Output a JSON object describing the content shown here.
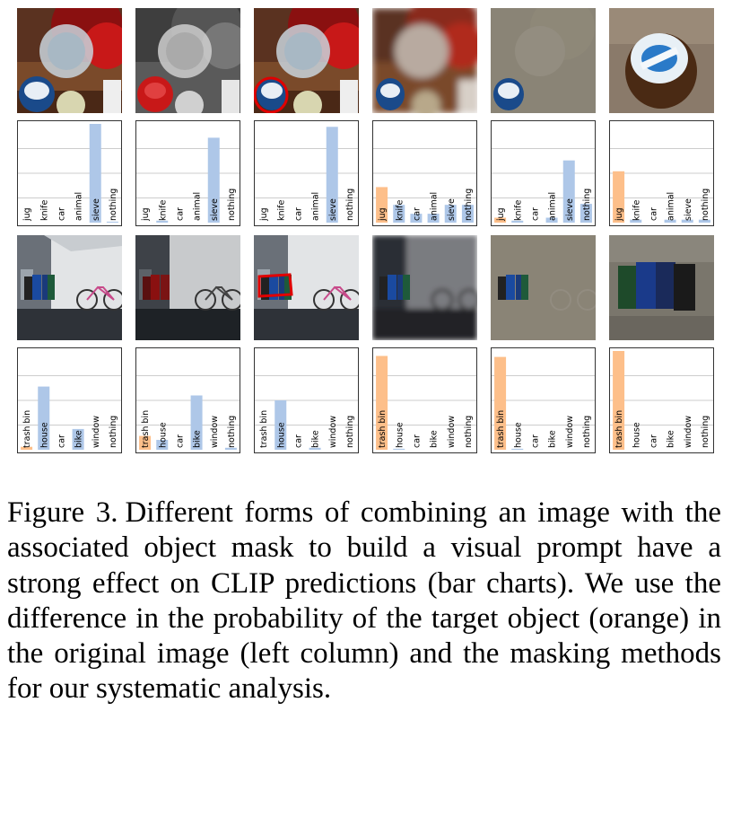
{
  "figure": {
    "label": "Figure 3.",
    "caption": "Different forms of combining an image with the associated object mask to build a visual prompt have a strong effect on CLIP predictions (bar charts). We use the difference in the probability of the target object (orange) in the original image (left column) and the masking methods for our systematic analysis."
  },
  "colors": {
    "target": "#fdbf8a",
    "other": "#aec7e8",
    "mask_outline": "#e00000"
  },
  "rows": [
    {
      "scene": "kitchen",
      "thumbs": [
        "original",
        "grayscale",
        "red-outline",
        "blur",
        "gray-background",
        "crop"
      ]
    },
    {
      "scene": "street",
      "thumbs": [
        "original",
        "darkened",
        "red-outline",
        "blur",
        "gray-background",
        "crop"
      ]
    }
  ],
  "chart_data": [
    {
      "type": "bar",
      "ylim": [
        0,
        1
      ],
      "categories": [
        "jug",
        "knife",
        "car",
        "animal",
        "sieve",
        "nothing"
      ],
      "values": [
        0.0,
        0.0,
        0.0,
        0.0,
        1.0,
        0.01
      ],
      "target_index": 0
    },
    {
      "type": "bar",
      "ylim": [
        0,
        1
      ],
      "categories": [
        "jug",
        "knife",
        "car",
        "animal",
        "sieve",
        "nothing"
      ],
      "values": [
        0.0,
        0.02,
        0.0,
        0.0,
        0.86,
        0.0
      ],
      "target_index": 0
    },
    {
      "type": "bar",
      "ylim": [
        0,
        1
      ],
      "categories": [
        "jug",
        "knife",
        "car",
        "animal",
        "sieve",
        "nothing"
      ],
      "values": [
        0.0,
        0.0,
        0.0,
        0.0,
        0.97,
        0.0
      ],
      "target_index": 0
    },
    {
      "type": "bar",
      "ylim": [
        0,
        1
      ],
      "categories": [
        "jug",
        "knife",
        "car",
        "animal",
        "sieve",
        "nothing"
      ],
      "values": [
        0.36,
        0.18,
        0.09,
        0.09,
        0.18,
        0.18
      ],
      "target_index": 0
    },
    {
      "type": "bar",
      "ylim": [
        0,
        1
      ],
      "categories": [
        "jug",
        "knife",
        "car",
        "animal",
        "sieve",
        "nothing"
      ],
      "values": [
        0.05,
        0.02,
        0.0,
        0.05,
        0.63,
        0.19
      ],
      "target_index": 0
    },
    {
      "type": "bar",
      "ylim": [
        0,
        1
      ],
      "categories": [
        "jug",
        "knife",
        "car",
        "animal",
        "sieve",
        "nothing"
      ],
      "values": [
        0.52,
        0.03,
        0.0,
        0.03,
        0.03,
        0.03
      ],
      "target_index": 0
    },
    {
      "type": "bar",
      "ylim": [
        0,
        1
      ],
      "categories": [
        "trash bin",
        "house",
        "car",
        "bike",
        "window",
        "nothing"
      ],
      "values": [
        0.03,
        0.64,
        0.0,
        0.21,
        0.0,
        0.0
      ],
      "target_index": 0
    },
    {
      "type": "bar",
      "ylim": [
        0,
        1
      ],
      "categories": [
        "trash bin",
        "house",
        "car",
        "bike",
        "window",
        "nothing"
      ],
      "values": [
        0.14,
        0.1,
        0.0,
        0.55,
        0.0,
        0.02
      ],
      "target_index": 0
    },
    {
      "type": "bar",
      "ylim": [
        0,
        1
      ],
      "categories": [
        "trash bin",
        "house",
        "car",
        "bike",
        "window",
        "nothing"
      ],
      "values": [
        0.0,
        0.5,
        0.0,
        0.02,
        0.0,
        0.0
      ],
      "target_index": 0
    },
    {
      "type": "bar",
      "ylim": [
        0,
        1
      ],
      "categories": [
        "trash bin",
        "house",
        "car",
        "bike",
        "window",
        "nothing"
      ],
      "values": [
        0.95,
        0.01,
        0.0,
        0.0,
        0.0,
        0.0
      ],
      "target_index": 0
    },
    {
      "type": "bar",
      "ylim": [
        0,
        1
      ],
      "categories": [
        "trash bin",
        "house",
        "car",
        "bike",
        "window",
        "nothing"
      ],
      "values": [
        0.94,
        0.01,
        0.0,
        0.0,
        0.0,
        0.0
      ],
      "target_index": 0
    },
    {
      "type": "bar",
      "ylim": [
        0,
        1
      ],
      "categories": [
        "trash bin",
        "house",
        "car",
        "bike",
        "window",
        "nothing"
      ],
      "values": [
        1.0,
        0.0,
        0.0,
        0.0,
        0.0,
        0.0
      ],
      "target_index": 0
    }
  ]
}
